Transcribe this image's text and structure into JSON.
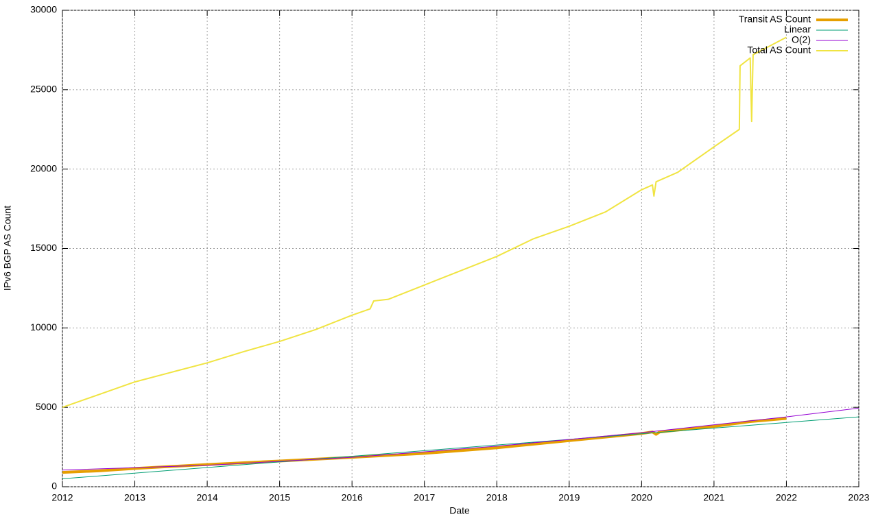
{
  "chart_data": {
    "type": "line",
    "xlabel": "Date",
    "ylabel": "IPv6 BGP AS Count",
    "xlim": [
      2012,
      2023
    ],
    "xticks": [
      2012,
      2013,
      2014,
      2015,
      2016,
      2017,
      2018,
      2019,
      2020,
      2021,
      2022,
      2023
    ],
    "ylim": [
      0,
      30000
    ],
    "yticks": [
      0,
      5000,
      10000,
      15000,
      20000,
      25000,
      30000
    ],
    "grid": true,
    "legend": "top-right",
    "series": [
      {
        "name": "Transit AS Count",
        "color": "#e69f00",
        "line_width": 4,
        "x": [
          2012,
          2012.5,
          2013,
          2014,
          2015,
          2016,
          2017,
          2018,
          2019,
          2020,
          2020.15,
          2020.2,
          2020.25,
          2021,
          2021.5,
          2022
        ],
        "values": [
          900,
          1000,
          1150,
          1400,
          1620,
          1850,
          2100,
          2450,
          2900,
          3350,
          3450,
          3300,
          3450,
          3800,
          4100,
          4300
        ]
      },
      {
        "name": "Linear",
        "color": "#009e73",
        "line_width": 1,
        "x": [
          2012,
          2023
        ],
        "values": [
          500,
          4400
        ]
      },
      {
        "name": "O(2)",
        "color": "#9400d3",
        "line_width": 1,
        "x": [
          2012,
          2014,
          2016,
          2018,
          2020,
          2022,
          2023
        ],
        "values": [
          1050,
          1350,
          1850,
          2550,
          3400,
          4400,
          4950
        ]
      },
      {
        "name": "Total AS Count",
        "color": "#f0e442",
        "line_width": 2,
        "x": [
          2012,
          2012.5,
          2013,
          2013.5,
          2014,
          2014.5,
          2015,
          2015.5,
          2016,
          2016.25,
          2016.3,
          2016.5,
          2017,
          2017.5,
          2018,
          2018.5,
          2019,
          2019.5,
          2020,
          2020.15,
          2020.17,
          2020.2,
          2020.5,
          2021,
          2021.35,
          2021.36,
          2021.5,
          2021.52,
          2021.54,
          2022
        ],
        "values": [
          5000,
          5800,
          6600,
          7200,
          7800,
          8500,
          9150,
          9900,
          10800,
          11200,
          11700,
          11800,
          12700,
          13600,
          14500,
          15600,
          16400,
          17300,
          18700,
          19000,
          18300,
          19200,
          19800,
          21400,
          22500,
          26500,
          27000,
          23000,
          27200,
          28300
        ]
      }
    ]
  }
}
